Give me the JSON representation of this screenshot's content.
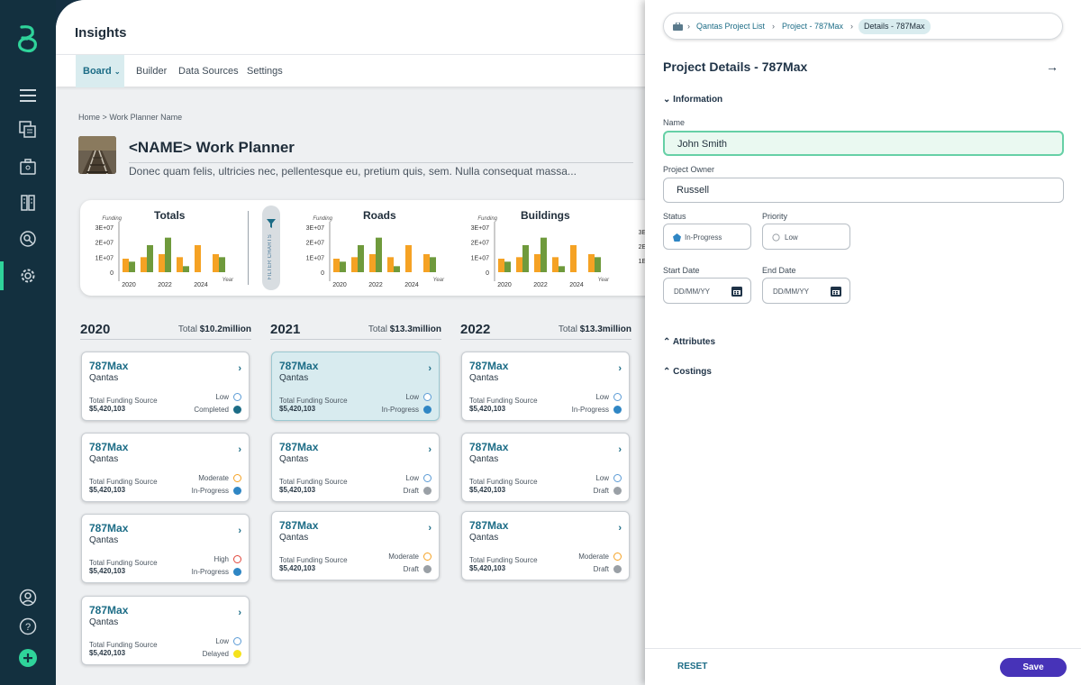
{
  "app": {
    "title": "Insights"
  },
  "nav": {
    "board": "Board",
    "builder": "Builder",
    "data_sources": "Data Sources",
    "settings": "Settings"
  },
  "breadcrumb": {
    "home": "Home",
    "sep": ">",
    "current": "Work Planner Name"
  },
  "planner": {
    "title": "<NAME> Work Planner",
    "subtitle": "Donec quam felis, ultricies nec, pellentesque eu, pretium quis, sem. Nulla consequat massa..."
  },
  "filter": {
    "label": "FILTER CHARTS"
  },
  "chart_data": [
    {
      "type": "bar",
      "title": "Totals",
      "ylabel": "Funding",
      "xlabel": "Year",
      "yticks": [
        "3E+07",
        "2E+07",
        "1E+07",
        "0"
      ],
      "ylim": [
        0,
        30000000
      ],
      "categories": [
        "2020",
        "2021",
        "2022",
        "2023",
        "2024",
        "2025"
      ],
      "xticks": [
        "2020",
        "2022",
        "2024"
      ],
      "series": [
        {
          "values": [
            9000000,
            10000000,
            12000000,
            10000000,
            18000000,
            12000000
          ]
        },
        {
          "values": [
            7000000,
            18000000,
            23000000,
            4000000,
            0,
            10000000
          ]
        }
      ]
    },
    {
      "type": "bar",
      "title": "Roads",
      "ylabel": "Funding",
      "xlabel": "Year",
      "yticks": [
        "3E+07",
        "2E+07",
        "1E+07",
        "0"
      ],
      "ylim": [
        0,
        30000000
      ],
      "categories": [
        "2020",
        "2021",
        "2022",
        "2023",
        "2024",
        "2025"
      ],
      "xticks": [
        "2020",
        "2022",
        "2024"
      ],
      "series": [
        {
          "values": [
            9000000,
            10000000,
            12000000,
            10000000,
            18000000,
            12000000
          ]
        },
        {
          "values": [
            7000000,
            18000000,
            23000000,
            4000000,
            0,
            10000000
          ]
        }
      ]
    },
    {
      "type": "bar",
      "title": "Buildings",
      "ylabel": "Funding",
      "xlabel": "Year",
      "yticks": [
        "3E+07",
        "2E+07",
        "1E+07",
        "0"
      ],
      "ylim": [
        0,
        30000000
      ],
      "categories": [
        "2020",
        "2021",
        "2022",
        "2023",
        "2024",
        "2025"
      ],
      "xticks": [
        "2020",
        "2022",
        "2024"
      ],
      "series": [
        {
          "values": [
            9000000,
            10000000,
            12000000,
            10000000,
            18000000,
            12000000
          ]
        },
        {
          "values": [
            7000000,
            18000000,
            23000000,
            4000000,
            0,
            10000000
          ]
        }
      ]
    }
  ],
  "chart_colors": {
    "orange": "#f5a224",
    "green": "#6f9a3c"
  },
  "years": [
    {
      "year": "2020",
      "total_label": "Total",
      "total": "$10.2million"
    },
    {
      "year": "2021",
      "total_label": "Total",
      "total": "$13.3million"
    },
    {
      "year": "2022",
      "total_label": "Total",
      "total": "$13.3million"
    }
  ],
  "cards": [
    [
      {
        "name": "787Max",
        "org": "Qantas",
        "funding_label": "Total Funding Source",
        "funding": "$5,420,103",
        "priority": "Low",
        "status": "Completed"
      },
      {
        "name": "787Max",
        "org": "Qantas",
        "funding_label": "Total Funding Source",
        "funding": "$5,420,103",
        "priority": "Moderate",
        "status": "In-Progress"
      },
      {
        "name": "787Max",
        "org": "Qantas",
        "funding_label": "Total Funding Source",
        "funding": "$5,420,103",
        "priority": "High",
        "status": "In-Progress"
      },
      {
        "name": "787Max",
        "org": "Qantas",
        "funding_label": "Total Funding Source",
        "funding": "$5,420,103",
        "priority": "Low",
        "status": "Delayed"
      }
    ],
    [
      {
        "name": "787Max",
        "org": "Qantas",
        "funding_label": "Total Funding Source",
        "funding": "$5,420,103",
        "priority": "Low",
        "status": "In-Progress"
      },
      {
        "name": "787Max",
        "org": "Qantas",
        "funding_label": "Total Funding Source",
        "funding": "$5,420,103",
        "priority": "Low",
        "status": "Draft"
      },
      {
        "name": "787Max",
        "org": "Qantas",
        "funding_label": "Total Funding Source",
        "funding": "$5,420,103",
        "priority": "Moderate",
        "status": "Draft"
      }
    ],
    [
      {
        "name": "787Max",
        "org": "Qantas",
        "funding_label": "Total Funding Source",
        "funding": "$5,420,103",
        "priority": "Low",
        "status": "In-Progress"
      },
      {
        "name": "787Max",
        "org": "Qantas",
        "funding_label": "Total Funding Source",
        "funding": "$5,420,103",
        "priority": "Low",
        "status": "Draft"
      },
      {
        "name": "787Max",
        "org": "Qantas",
        "funding_label": "Total Funding Source",
        "funding": "$5,420,103",
        "priority": "Moderate",
        "status": "Draft"
      }
    ]
  ],
  "status_colors": {
    "Completed": "#1c6c86",
    "In-Progress": "#2f86c4",
    "Draft": "#9aa0a6",
    "Delayed": "#f5e21c"
  },
  "priority_colors": {
    "Low": "#5b9bd5",
    "Moderate": "#f5a224",
    "High": "#e0453a"
  },
  "panel": {
    "breadcrumb": {
      "list": "Qantas Project List",
      "project": "Project - 787Max",
      "current": "Details - 787Max"
    },
    "title": "Project Details - 787Max",
    "sections": {
      "information": "Information",
      "attributes": "Attributes",
      "costings": "Costings"
    },
    "fields": {
      "name_label": "Name",
      "name_value": "John Smith",
      "owner_label": "Project Owner",
      "owner_value": "Russell",
      "status_label": "Status",
      "status_value": "In-Progress",
      "priority_label": "Priority",
      "priority_value": "Low",
      "start_label": "Start Date",
      "start_placeholder": "DD/MM/YY",
      "end_label": "End Date",
      "end_placeholder": "DD/MM/YY"
    },
    "reset": "RESET",
    "save": "Save"
  },
  "icons": {
    "logo": "brand-logo-icon",
    "menu": "hamburger-menu-icon",
    "add": "add-circle-icon"
  }
}
